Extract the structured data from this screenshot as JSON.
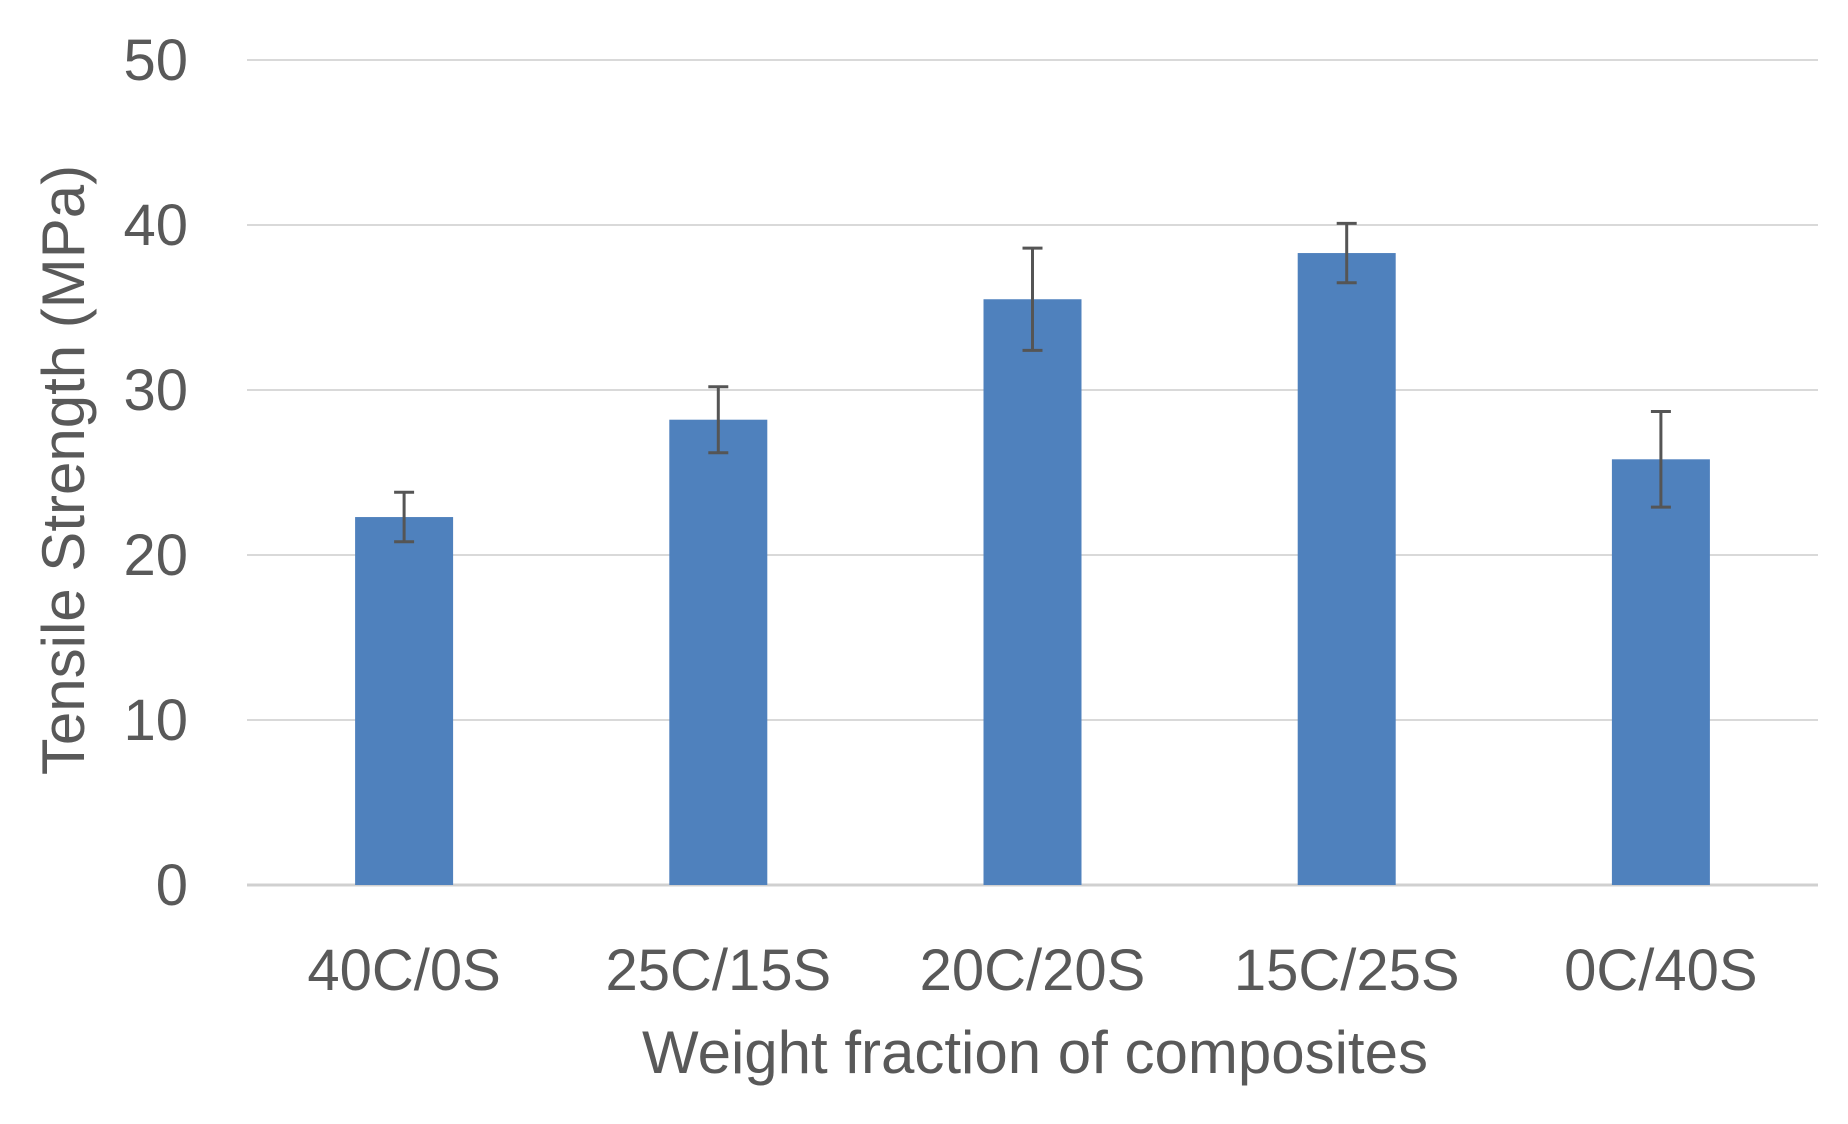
{
  "chart_data": {
    "type": "bar",
    "title": "",
    "xlabel": "Weight fraction of composites",
    "ylabel": "Tensile Strength (MPa)",
    "categories": [
      "40C/0S",
      "25C/15S",
      "20C/20S",
      "15C/25S",
      "0C/40S"
    ],
    "series": [
      {
        "values": [
          22.3,
          28.2,
          35.5,
          38.3,
          25.8
        ],
        "error": [
          1.5,
          2.0,
          3.1,
          1.8,
          2.9
        ],
        "color": "#4F81BD"
      }
    ],
    "ylim": [
      0,
      50
    ],
    "yticks": [
      "0",
      "10",
      "20",
      "30",
      "40",
      "50"
    ],
    "grid": true,
    "legend": "none"
  }
}
